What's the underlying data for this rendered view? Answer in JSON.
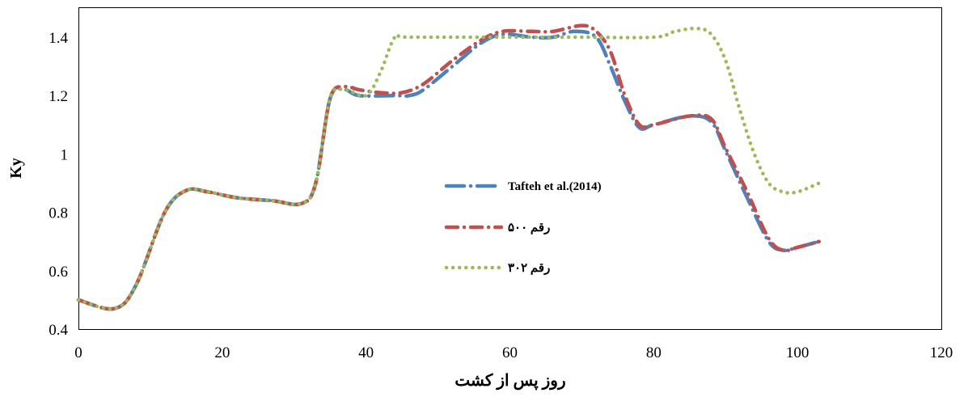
{
  "chart_data": {
    "type": "line",
    "title": "",
    "xlabel": "روز پس از کشت",
    "ylabel": "Ky",
    "xlim": [
      0,
      120
    ],
    "ylim": [
      0.4,
      1.5
    ],
    "xticks": [
      "0",
      "20",
      "40",
      "60",
      "80",
      "100",
      "120"
    ],
    "yticks": [
      "0.4",
      "0.6",
      "0.8",
      "1",
      "1.2",
      "1.4"
    ],
    "grid": false,
    "legend_position": "center",
    "series": [
      {
        "name": "Tafteh et al.(2014)",
        "color": "#4F81BD",
        "style": "long-dash-dot",
        "x": [
          0,
          5,
          8,
          12,
          15,
          18,
          22,
          27,
          31,
          33,
          35,
          37,
          39,
          44,
          46,
          48,
          52,
          56,
          59,
          63,
          66,
          69,
          72,
          74,
          76,
          78,
          80,
          85,
          88,
          90,
          93,
          96,
          98,
          100,
          103
        ],
        "y": [
          0.5,
          0.47,
          0.55,
          0.8,
          0.875,
          0.87,
          0.85,
          0.84,
          0.83,
          0.9,
          1.19,
          1.22,
          1.2,
          1.2,
          1.2,
          1.22,
          1.3,
          1.38,
          1.41,
          1.4,
          1.4,
          1.42,
          1.4,
          1.3,
          1.18,
          1.09,
          1.1,
          1.13,
          1.11,
          1.01,
          0.85,
          0.7,
          0.67,
          0.68,
          0.7
        ]
      },
      {
        "name": "رقم ۵۰۰",
        "color": "#C0504D",
        "style": "dash-dot",
        "x": [
          0,
          5,
          8,
          12,
          15,
          18,
          22,
          27,
          31,
          33,
          35,
          37,
          39,
          42,
          45,
          48,
          52,
          56,
          59,
          63,
          66,
          70,
          72,
          74,
          76,
          78,
          80,
          85,
          88,
          90,
          93,
          96,
          98,
          100,
          103
        ],
        "y": [
          0.5,
          0.47,
          0.55,
          0.8,
          0.875,
          0.87,
          0.85,
          0.84,
          0.83,
          0.9,
          1.19,
          1.23,
          1.22,
          1.21,
          1.21,
          1.24,
          1.32,
          1.39,
          1.42,
          1.42,
          1.42,
          1.44,
          1.42,
          1.35,
          1.2,
          1.1,
          1.1,
          1.13,
          1.12,
          1.02,
          0.87,
          0.71,
          0.67,
          0.68,
          0.7
        ]
      },
      {
        "name": "رقم ۳۰۲",
        "color": "#9BBB59",
        "style": "dotted",
        "x": [
          0,
          5,
          8,
          12,
          15,
          18,
          22,
          27,
          31,
          33,
          35,
          37,
          40,
          42,
          44,
          46,
          60,
          70,
          80,
          83,
          86,
          88,
          90,
          92,
          94,
          96,
          98,
          100,
          103
        ],
        "y": [
          0.5,
          0.47,
          0.55,
          0.8,
          0.875,
          0.87,
          0.85,
          0.84,
          0.83,
          0.9,
          1.19,
          1.22,
          1.2,
          1.28,
          1.4,
          1.4,
          1.4,
          1.4,
          1.4,
          1.42,
          1.43,
          1.41,
          1.32,
          1.15,
          1.0,
          0.9,
          0.87,
          0.87,
          0.9
        ]
      }
    ]
  }
}
